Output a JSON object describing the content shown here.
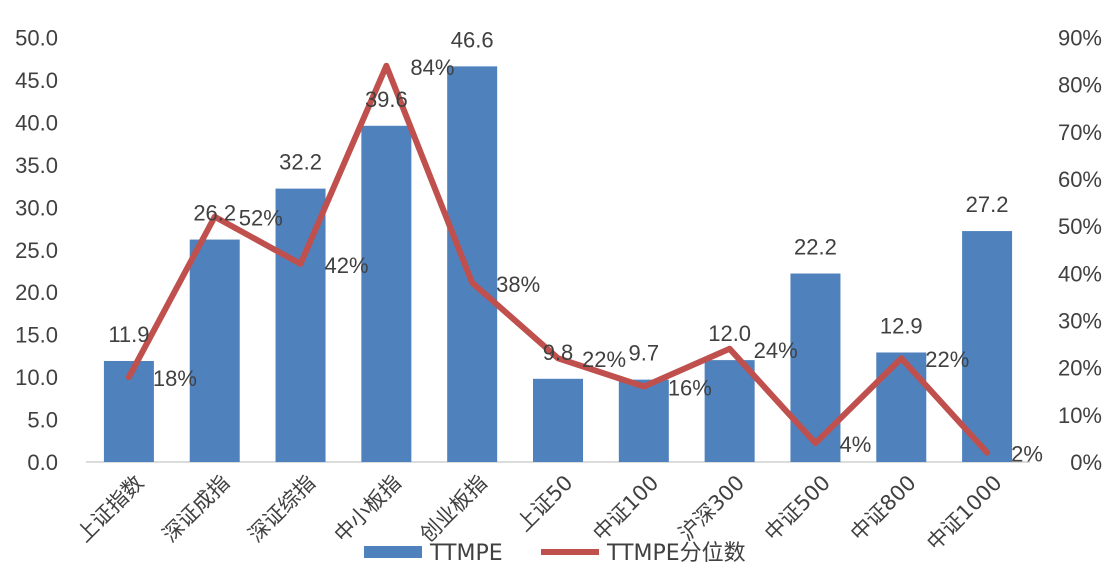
{
  "chart_data": {
    "type": "bar",
    "categories": [
      "上证指数",
      "深证成指",
      "深证综指",
      "中小板指",
      "创业板指",
      "上证50",
      "中证100",
      "沪深300",
      "中证500",
      "中证800",
      "中证1000"
    ],
    "series": [
      {
        "name": "TTMPE",
        "type": "bar",
        "axis": "left",
        "color": "#4F81BD",
        "values": [
          11.9,
          26.2,
          32.2,
          39.6,
          46.6,
          9.8,
          9.7,
          12.0,
          22.2,
          12.9,
          27.2
        ],
        "labels": [
          "11.9",
          "26.2",
          "32.2",
          "39.6",
          "46.6",
          "9.8",
          "9.7",
          "12.0",
          "22.2",
          "12.9",
          "27.2"
        ]
      },
      {
        "name": "TTMPE分位数",
        "type": "line",
        "axis": "right",
        "color": "#C0504D",
        "values": [
          18,
          52,
          42,
          84,
          38,
          22,
          16,
          24,
          4,
          22,
          2
        ],
        "labels": [
          "18%",
          "52%",
          "42%",
          "84%",
          "38%",
          "22%",
          "16%",
          "24%",
          "4%",
          "22%",
          "2%"
        ]
      }
    ],
    "y_left": {
      "ylim": [
        0,
        50
      ],
      "ticks": [
        "0.0",
        "5.0",
        "10.0",
        "15.0",
        "20.0",
        "25.0",
        "30.0",
        "35.0",
        "40.0",
        "45.0",
        "50.0"
      ]
    },
    "y_right": {
      "ylim": [
        0,
        90
      ],
      "ticks": [
        "0%",
        "10%",
        "20%",
        "30%",
        "40%",
        "50%",
        "60%",
        "70%",
        "80%",
        "90%"
      ]
    },
    "grid": false,
    "legend": {
      "position": "bottom",
      "items": [
        "TTMPE",
        "TTMPE分位数"
      ]
    }
  }
}
